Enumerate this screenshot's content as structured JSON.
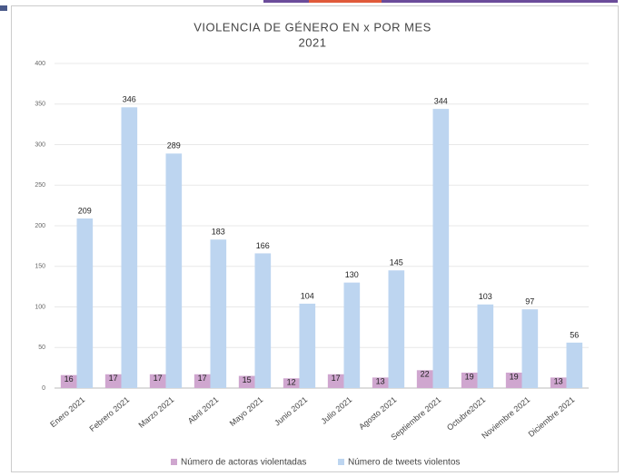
{
  "chart_data": {
    "type": "bar",
    "title": "VIOLENCIA DE GÉNERO EN x POR MES",
    "subtitle": "2021",
    "categories": [
      "Enero 2021",
      "Febrero 2021",
      "Marzo 2021",
      "Abril 2021",
      "Mayo 2021",
      "Junio 2021",
      "Julio 2021",
      "Agosto 2021",
      "Septiembre 2021",
      "Octubre2021",
      "Noviembre 2021",
      "Diciembre 2021"
    ],
    "series": [
      {
        "name": "Número de actoras violentadas",
        "color": "#cfa6cf",
        "values": [
          16,
          17,
          17,
          17,
          15,
          12,
          17,
          13,
          22,
          19,
          19,
          13
        ]
      },
      {
        "name": "Número de tweets violentos",
        "color": "#bdd5f0",
        "values": [
          209,
          346,
          289,
          183,
          166,
          104,
          130,
          145,
          344,
          103,
          97,
          56
        ]
      }
    ],
    "ylim": [
      0,
      400
    ],
    "yticks": [
      0,
      50,
      100,
      150,
      200,
      250,
      300,
      350,
      400
    ],
    "grid": true,
    "legend": "bottom"
  }
}
